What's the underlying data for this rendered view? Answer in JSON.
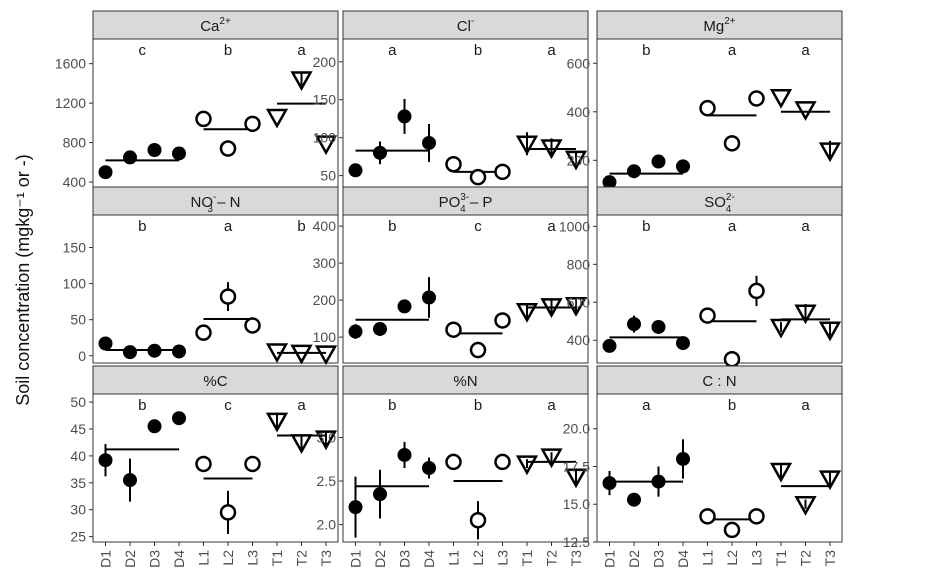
{
  "y_axis_title": "Soil concentration (mgkg⁻¹ or -)",
  "chart_data": [
    {
      "type": "scatter",
      "panel": "Ca",
      "strip": {
        "base": "Ca",
        "sup": "2+",
        "sub": "",
        "tail": ""
      },
      "letters": [
        "c",
        "b",
        "a"
      ],
      "yticks": [
        400,
        800,
        1200,
        1600
      ],
      "ylim": [
        350,
        1850
      ],
      "points": [
        {
          "site": "D1",
          "y": 500,
          "err": 0
        },
        {
          "site": "D2",
          "y": 650,
          "err": 35
        },
        {
          "site": "D3",
          "y": 725,
          "err": 0
        },
        {
          "site": "D4",
          "y": 690,
          "err": 0
        },
        {
          "site": "L1",
          "y": 1040,
          "err": 30
        },
        {
          "site": "L2",
          "y": 740,
          "err": 50
        },
        {
          "site": "L3",
          "y": 990,
          "err": 0
        },
        {
          "site": "T1",
          "y": 1060,
          "err": 0
        },
        {
          "site": "T2",
          "y": 1440,
          "err": 60
        },
        {
          "site": "T3",
          "y": 790,
          "err": 0
        }
      ],
      "means": [
        620,
        935,
        1195
      ]
    },
    {
      "type": "scatter",
      "panel": "Cl",
      "strip": {
        "base": "Cl",
        "sup": "-",
        "sub": "",
        "tail": ""
      },
      "letters": [
        "a",
        "b",
        "a"
      ],
      "yticks": [
        50,
        100,
        150,
        200
      ],
      "ylim": [
        35,
        230
      ],
      "points": [
        {
          "site": "D1",
          "y": 57,
          "err": 5
        },
        {
          "site": "D2",
          "y": 80,
          "err": 15
        },
        {
          "site": "D3",
          "y": 128,
          "err": 23
        },
        {
          "site": "D4",
          "y": 93,
          "err": 25
        },
        {
          "site": "L1",
          "y": 65,
          "err": 0
        },
        {
          "site": "L2",
          "y": 48,
          "err": 5
        },
        {
          "site": "L3",
          "y": 55,
          "err": 0
        },
        {
          "site": "T1",
          "y": 92,
          "err": 15
        },
        {
          "site": "T2",
          "y": 87,
          "err": 12
        },
        {
          "site": "T3",
          "y": 72,
          "err": 10
        }
      ],
      "means": [
        83,
        55,
        85
      ]
    },
    {
      "type": "scatter",
      "panel": "Mg",
      "strip": {
        "base": "Mg",
        "sup": "2+",
        "sub": "",
        "tail": ""
      },
      "letters": [
        "b",
        "a",
        "a"
      ],
      "yticks": [
        200,
        400,
        600
      ],
      "ylim": [
        90,
        700
      ],
      "points": [
        {
          "site": "D1",
          "y": 110,
          "err": 0
        },
        {
          "site": "D2",
          "y": 155,
          "err": 0
        },
        {
          "site": "D3",
          "y": 195,
          "err": 0
        },
        {
          "site": "D4",
          "y": 175,
          "err": 15
        },
        {
          "site": "L1",
          "y": 415,
          "err": 0
        },
        {
          "site": "L2",
          "y": 270,
          "err": 0
        },
        {
          "site": "L3",
          "y": 455,
          "err": 0
        },
        {
          "site": "T1",
          "y": 460,
          "err": 0
        },
        {
          "site": "T2",
          "y": 410,
          "err": 0
        },
        {
          "site": "T3",
          "y": 240,
          "err": 40
        }
      ],
      "means": [
        145,
        385,
        400
      ]
    },
    {
      "type": "scatter",
      "panel": "NO3",
      "strip": {
        "base": "NO",
        "sup": "-",
        "sub": "3",
        "tail": " – N"
      },
      "letters": [
        "b",
        "a",
        "b"
      ],
      "yticks": [
        0,
        50,
        100,
        150
      ],
      "ylim": [
        -10,
        195
      ],
      "points": [
        {
          "site": "D1",
          "y": 17,
          "err": 0
        },
        {
          "site": "D2",
          "y": 5,
          "err": 0
        },
        {
          "site": "D3",
          "y": 7,
          "err": 0
        },
        {
          "site": "D4",
          "y": 6,
          "err": 0
        },
        {
          "site": "L1",
          "y": 32,
          "err": 0
        },
        {
          "site": "L2",
          "y": 82,
          "err": 20
        },
        {
          "site": "L3",
          "y": 42,
          "err": 0
        },
        {
          "site": "T1",
          "y": 6,
          "err": 0
        },
        {
          "site": "T2",
          "y": 4,
          "err": 0
        },
        {
          "site": "T3",
          "y": 3,
          "err": 0
        }
      ],
      "means": [
        8,
        51,
        4
      ]
    },
    {
      "type": "scatter",
      "panel": "PO4",
      "strip": {
        "base": "PO",
        "sup": "3-",
        "sub": "4",
        "tail": " – P"
      },
      "letters": [
        "b",
        "c",
        "a"
      ],
      "yticks": [
        100,
        200,
        300,
        400
      ],
      "ylim": [
        30,
        430
      ],
      "points": [
        {
          "site": "D1",
          "y": 115,
          "err": 20
        },
        {
          "site": "D2",
          "y": 122,
          "err": 18
        },
        {
          "site": "D3",
          "y": 183,
          "err": 0
        },
        {
          "site": "D4",
          "y": 207,
          "err": 55
        },
        {
          "site": "L1",
          "y": 120,
          "err": 0
        },
        {
          "site": "L2",
          "y": 65,
          "err": 12
        },
        {
          "site": "L3",
          "y": 145,
          "err": 0
        },
        {
          "site": "T1",
          "y": 170,
          "err": 20
        },
        {
          "site": "T2",
          "y": 183,
          "err": 20
        },
        {
          "site": "T3",
          "y": 186,
          "err": 20
        }
      ],
      "means": [
        147,
        110,
        180
      ]
    },
    {
      "type": "scatter",
      "panel": "SO4",
      "strip": {
        "base": "SO",
        "sup": "2-",
        "sub": "4",
        "tail": ""
      },
      "letters": [
        "b",
        "a",
        "a"
      ],
      "yticks": [
        400,
        600,
        800,
        1000
      ],
      "ylim": [
        280,
        1060
      ],
      "points": [
        {
          "site": "D1",
          "y": 370,
          "err": 30
        },
        {
          "site": "D2",
          "y": 485,
          "err": 45
        },
        {
          "site": "D3",
          "y": 470,
          "err": 35
        },
        {
          "site": "D4",
          "y": 385,
          "err": 0
        },
        {
          "site": "L1",
          "y": 530,
          "err": 25
        },
        {
          "site": "L2",
          "y": 300,
          "err": 0
        },
        {
          "site": "L3",
          "y": 660,
          "err": 80
        },
        {
          "site": "T1",
          "y": 470,
          "err": 25
        },
        {
          "site": "T2",
          "y": 545,
          "err": 45
        },
        {
          "site": "T3",
          "y": 455,
          "err": 40
        }
      ],
      "means": [
        415,
        500,
        510
      ]
    },
    {
      "type": "scatter",
      "panel": "C",
      "strip": {
        "base": "%C",
        "sup": "",
        "sub": "",
        "tail": ""
      },
      "letters": [
        "b",
        "c",
        "a"
      ],
      "yticks": [
        25,
        30,
        35,
        40,
        45,
        50
      ],
      "ylim": [
        24,
        51.5
      ],
      "points": [
        {
          "site": "D1",
          "y": 39.2,
          "err": 3
        },
        {
          "site": "D2",
          "y": 35.5,
          "err": 4
        },
        {
          "site": "D3",
          "y": 45.5,
          "err": 0
        },
        {
          "site": "D4",
          "y": 47,
          "err": 0
        },
        {
          "site": "L1",
          "y": 38.5,
          "err": 0
        },
        {
          "site": "L2",
          "y": 29.5,
          "err": 4
        },
        {
          "site": "L3",
          "y": 38.5,
          "err": 0
        },
        {
          "site": "T1",
          "y": 46.5,
          "err": 1.2
        },
        {
          "site": "T2",
          "y": 42.5,
          "err": 1.5
        },
        {
          "site": "T3",
          "y": 43.2,
          "err": 1.2
        }
      ],
      "means": [
        41.2,
        35.8,
        43.8
      ]
    },
    {
      "type": "scatter",
      "panel": "N",
      "strip": {
        "base": "%N",
        "sup": "",
        "sub": "",
        "tail": ""
      },
      "letters": [
        "b",
        "b",
        "a"
      ],
      "yticks": [
        2.0,
        2.5,
        3.0
      ],
      "ylim": [
        1.8,
        3.5
      ],
      "points": [
        {
          "site": "D1",
          "y": 2.2,
          "err": 0.35
        },
        {
          "site": "D2",
          "y": 2.35,
          "err": 0.28
        },
        {
          "site": "D3",
          "y": 2.8,
          "err": 0.15
        },
        {
          "site": "D4",
          "y": 2.65,
          "err": 0.12
        },
        {
          "site": "L1",
          "y": 2.72,
          "err": 0
        },
        {
          "site": "L2",
          "y": 2.05,
          "err": 0.22
        },
        {
          "site": "L3",
          "y": 2.72,
          "err": 0
        },
        {
          "site": "T1",
          "y": 2.7,
          "err": 0.05
        },
        {
          "site": "T2",
          "y": 2.78,
          "err": 0.05
        },
        {
          "site": "T3",
          "y": 2.55,
          "err": 0.08
        }
      ],
      "means": [
        2.44,
        2.5,
        2.72
      ]
    },
    {
      "type": "scatter",
      "panel": "CN",
      "strip": {
        "base": "C : N",
        "sup": "",
        "sub": "",
        "tail": ""
      },
      "letters": [
        "a",
        "b",
        "a"
      ],
      "yticks": [
        12.5,
        15.0,
        17.5,
        20.0
      ],
      "ylim": [
        12.5,
        22.3
      ],
      "points": [
        {
          "site": "D1",
          "y": 16.4,
          "err": 0.8
        },
        {
          "site": "D2",
          "y": 15.3,
          "err": 0
        },
        {
          "site": "D3",
          "y": 16.5,
          "err": 1
        },
        {
          "site": "D4",
          "y": 18,
          "err": 1.3
        },
        {
          "site": "L1",
          "y": 14.2,
          "err": 0
        },
        {
          "site": "L2",
          "y": 13.3,
          "err": 0.5
        },
        {
          "site": "L3",
          "y": 14.2,
          "err": 0
        },
        {
          "site": "T1",
          "y": 17.2,
          "err": 0.5
        },
        {
          "site": "T2",
          "y": 15,
          "err": 0.3
        },
        {
          "site": "T3",
          "y": 16.7,
          "err": 0.5
        }
      ],
      "means": [
        16.5,
        14,
        16.2
      ]
    }
  ],
  "sites": [
    "D1",
    "D2",
    "D3",
    "D4",
    "L1",
    "L2",
    "L3",
    "T1",
    "T2",
    "T3"
  ]
}
